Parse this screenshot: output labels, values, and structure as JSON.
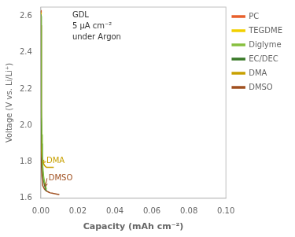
{
  "chart_data": {
    "type": "line",
    "title": "GDL\n5 μA cm⁻²\nunder Argon",
    "x_label": "Capacity (mAh cm⁻²)",
    "y_label": "Voltage (V vs. Li/Li⁺)",
    "xlim": [
      0,
      0.1
    ],
    "ylim": [
      1.6,
      2.65
    ],
    "xticks": [
      {
        "value": 0.0,
        "label": "0.00"
      },
      0.02,
      0.04,
      0.06,
      0.08,
      {
        "value": 0.1,
        "label": "0.10"
      }
    ],
    "yticks": [
      1.6,
      1.8,
      {
        "value": 2.0,
        "label": "2.0"
      },
      2.2,
      2.4,
      2.6
    ],
    "grid": false,
    "legend": "upper right",
    "series": [
      {
        "name": "PC",
        "color": "#E8602C",
        "x": [
          0.0,
          0.0001,
          0.0002
        ],
        "values": [
          2.63,
          2.63,
          2.62
        ]
      },
      {
        "name": "TEGDME",
        "color": "#F2D000",
        "x": [
          0.0,
          0.0001,
          0.0002
        ],
        "values": [
          2.63,
          2.62,
          2.61
        ]
      },
      {
        "name": "Diglyme",
        "color": "#88C040",
        "x": [
          0.0,
          5e-05,
          0.0001,
          0.0002,
          0.0004,
          0.0006,
          0.0008,
          0.001,
          0.0015,
          0.002,
          0.003
        ],
        "values": [
          2.63,
          2.6,
          2.5,
          2.3,
          2.1,
          1.95,
          1.85,
          1.78,
          1.72,
          1.69,
          1.65
        ]
      },
      {
        "name": "EC/DEC",
        "color": "#3A7A28",
        "x": [
          0.0,
          5e-05,
          0.0001,
          0.0002,
          0.0004,
          0.0006,
          0.0008,
          0.001,
          0.0015,
          0.002,
          0.003
        ],
        "values": [
          2.63,
          2.6,
          2.5,
          2.28,
          2.05,
          1.9,
          1.82,
          1.75,
          1.7,
          1.67,
          1.64
        ]
      },
      {
        "name": "DMA",
        "color": "#C8A000",
        "x": [
          0.0,
          5e-05,
          0.0001,
          0.0002,
          0.0004,
          0.0006,
          0.001,
          0.002,
          0.003,
          0.004,
          0.005,
          0.006,
          0.007
        ],
        "values": [
          2.63,
          2.55,
          2.35,
          2.05,
          1.88,
          1.83,
          1.8,
          1.78,
          1.77,
          1.77,
          1.77,
          1.77,
          1.77
        ]
      },
      {
        "name": "DMSO",
        "color": "#A05020",
        "x": [
          0.0,
          5e-05,
          0.0001,
          0.0002,
          0.0004,
          0.0006,
          0.001,
          0.002,
          0.003,
          0.004,
          0.005,
          0.006,
          0.007,
          0.008,
          0.009,
          0.01
        ],
        "values": [
          2.63,
          2.55,
          2.35,
          2.0,
          1.8,
          1.72,
          1.67,
          1.65,
          1.64,
          1.635,
          1.63,
          1.628,
          1.626,
          1.624,
          1.622,
          1.62
        ]
      }
    ],
    "annotations": [
      {
        "text": "DMA",
        "x": 0.003,
        "y": 1.805,
        "arrow_to": [
          0.0012,
          1.795
        ],
        "color": "#C8A000"
      },
      {
        "text": "DMSO",
        "x": 0.0042,
        "y": 1.71,
        "arrow_to": [
          0.0025,
          1.665
        ],
        "color": "#A05020"
      }
    ]
  }
}
